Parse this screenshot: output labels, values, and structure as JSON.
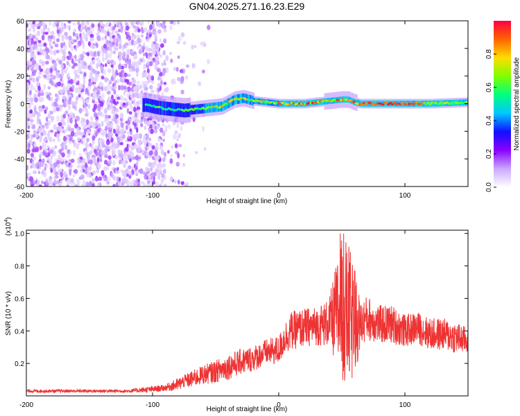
{
  "figure": {
    "title": "GN04.2025.271.16.23.E29"
  },
  "chart_data": [
    {
      "type": "heatmap",
      "title": "GN04.2025.271.16.23.E29",
      "xlabel": "Height of straight line (km)",
      "ylabel": "Frequency (Hz)",
      "xlim": [
        -200,
        150
      ],
      "ylim": [
        -60,
        60
      ],
      "xticks": [
        -200,
        -100,
        0,
        100
      ],
      "xtick_labels": [
        "-200",
        "-100",
        "0",
        "100"
      ],
      "yticks": [
        -60,
        -40,
        -20,
        0,
        20,
        40,
        60
      ],
      "ytick_labels": [
        "-60",
        "-40",
        "-20",
        "0",
        "20",
        "40",
        "60"
      ],
      "noise_region_km": [
        -200,
        -75
      ],
      "ridge": {
        "x": [
          -105,
          -95,
          -85,
          -75,
          -65,
          -55,
          -45,
          -35,
          -28,
          -20,
          -10,
          0,
          10,
          20,
          30,
          40,
          50,
          55,
          60,
          65,
          80,
          100,
          120,
          150
        ],
        "freq": [
          -1,
          -3,
          -4,
          -5,
          -4,
          -3,
          -2,
          3,
          4,
          2,
          1,
          0,
          0,
          0,
          1,
          2,
          3,
          3,
          1,
          0,
          0,
          0,
          0,
          1
        ]
      },
      "colorbar": {
        "label": "Normalized spectral amplitude",
        "range": [
          0,
          1
        ],
        "ticks": [
          0.0,
          0.2,
          0.4,
          0.6,
          0.8
        ],
        "tick_labels": [
          "0.0",
          "0.2",
          "0.4",
          "0.6",
          "0.8"
        ],
        "colors": [
          "#ffffff",
          "#c9a8ff",
          "#8a00ff",
          "#1010ff",
          "#00c8ff",
          "#00ff7f",
          "#7fff00",
          "#ffdc00",
          "#ff6400",
          "#ff0040"
        ]
      }
    },
    {
      "type": "line",
      "xlabel": "Height of straight line (km)",
      "ylabel": "SNR (10 * v/v)",
      "scale_label": "(x10",
      "scale_exp": "4",
      "scale_close": ")",
      "xlim": [
        -200,
        150
      ],
      "ylim": [
        0,
        1.02
      ],
      "xticks": [
        -200,
        -100,
        0,
        100
      ],
      "xtick_labels": [
        "-200",
        "-100",
        "0",
        "100"
      ],
      "yticks": [
        0.2,
        0.4,
        0.6,
        0.8,
        1.0
      ],
      "ytick_labels": [
        "0.2",
        "0.4",
        "0.6",
        "0.8",
        "1.0"
      ],
      "color": "#ee3333",
      "series": [
        {
          "name": "SNR",
          "x": [
            -200,
            -180,
            -160,
            -140,
            -120,
            -100,
            -90,
            -80,
            -75,
            -70,
            -60,
            -50,
            -40,
            -30,
            -20,
            -10,
            0,
            5,
            10,
            20,
            30,
            40,
            45,
            50,
            55,
            60,
            65,
            70,
            80,
            90,
            100,
            110,
            120,
            130,
            140,
            150
          ],
          "y": [
            0.03,
            0.03,
            0.03,
            0.03,
            0.03,
            0.04,
            0.05,
            0.07,
            0.09,
            0.1,
            0.13,
            0.15,
            0.18,
            0.21,
            0.23,
            0.27,
            0.28,
            0.36,
            0.4,
            0.42,
            0.43,
            0.45,
            0.5,
            0.52,
            0.5,
            0.44,
            0.44,
            0.48,
            0.44,
            0.44,
            0.4,
            0.42,
            0.38,
            0.38,
            0.36,
            0.34
          ],
          "spread": [
            0.01,
            0.01,
            0.01,
            0.01,
            0.01,
            0.02,
            0.02,
            0.04,
            0.04,
            0.05,
            0.06,
            0.07,
            0.08,
            0.08,
            0.08,
            0.08,
            0.09,
            0.1,
            0.12,
            0.12,
            0.12,
            0.15,
            0.3,
            0.45,
            0.45,
            0.35,
            0.14,
            0.14,
            0.12,
            0.12,
            0.1,
            0.1,
            0.1,
            0.1,
            0.1,
            0.08
          ]
        }
      ]
    }
  ]
}
